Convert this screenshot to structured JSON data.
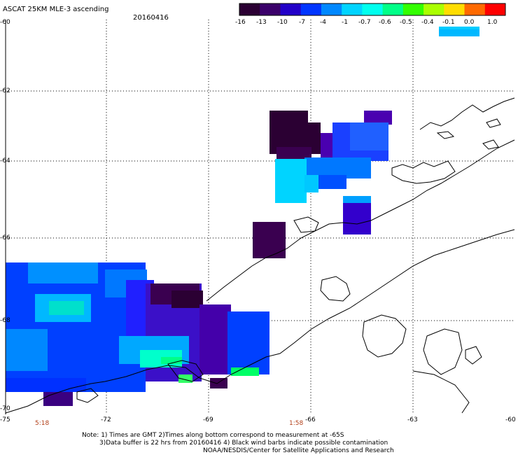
{
  "title": "ASCAT 25KM MLE-3 ascending",
  "date": "20160416",
  "colorbar": {
    "labels": [
      "-16",
      "-13",
      "-10",
      "-7",
      "-4",
      "-1",
      "-0.7",
      "-0.6",
      "-0.5",
      "-0.4",
      "-0.1",
      "0.0",
      "1.0"
    ],
    "colors": [
      "#2b0033",
      "#3a006a",
      "#2200c8",
      "#0035ff",
      "#0088ff",
      "#00d4ff",
      "#00ffee",
      "#00ff88",
      "#33ff00",
      "#aaff00",
      "#ffdd00",
      "#ff6a00",
      "#ff0000"
    ]
  },
  "y_labels": [
    "-60",
    "-62",
    "-64",
    "-66",
    "-68",
    "-70"
  ],
  "x_labels": [
    "-75",
    "-72",
    "-69",
    "-66",
    "-63",
    "-60"
  ],
  "times": [
    "5:18",
    "1:58"
  ],
  "notes": [
    "Note: 1) Times are GMT 2)Times along bottom correspond to measurement at -65S",
    "3)Data buffer is 22 hrs from 20160416 4) Black wind barbs indicate possible contamination",
    "NOAA/NESDIS/Center for Satellite Applications and Research"
  ]
}
